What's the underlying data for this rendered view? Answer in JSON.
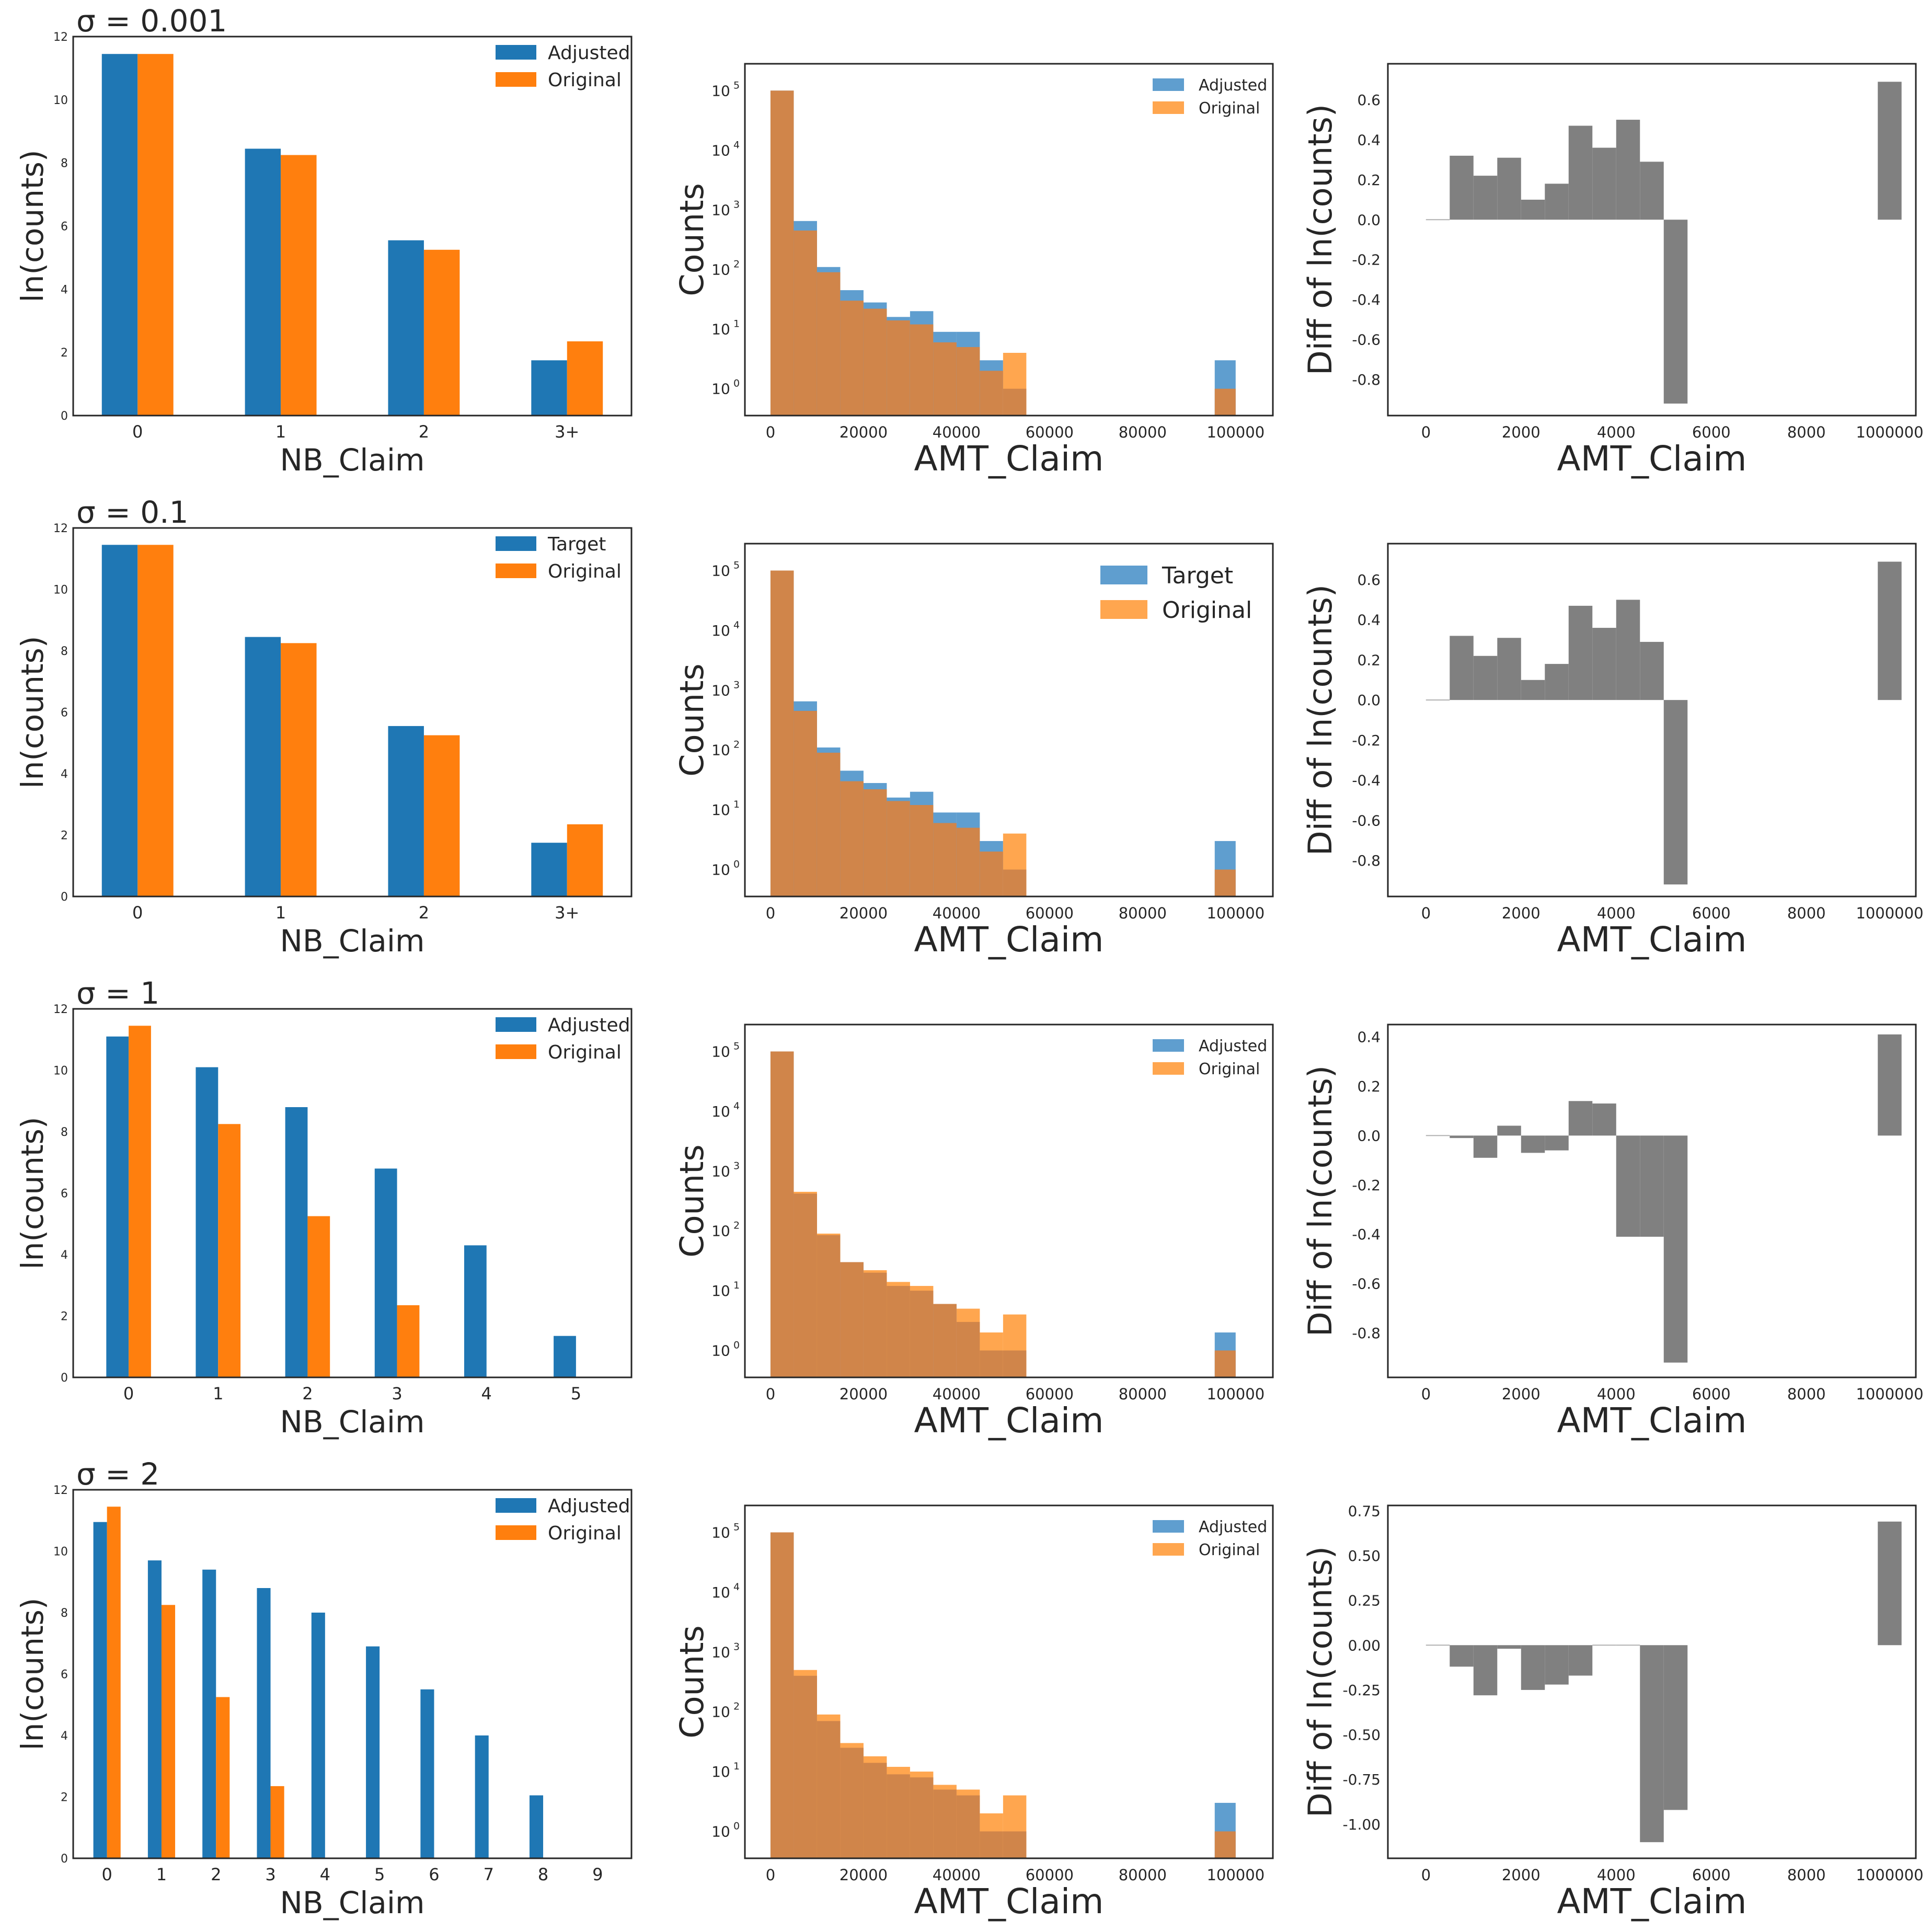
{
  "colors": {
    "adjusted": "#1f77b4",
    "original": "#ff7f0e",
    "hist_adjusted": "#5f9ecf",
    "hist_original": "#ffa64f",
    "hist_overlap": "#d0854a",
    "diff": "#808080"
  },
  "rows": [
    {
      "sigma_label": "σ = 0.001",
      "nb": {
        "type": "bar",
        "xlabel": "NB_Claim",
        "ylabel": "ln(counts)",
        "categories": [
          "0",
          "1",
          "2",
          "3+"
        ],
        "ylim": [
          0,
          12
        ],
        "yticks": [
          "0",
          "2",
          "4",
          "6",
          "8",
          "10",
          "12"
        ],
        "legend_position": "upper right",
        "series": [
          {
            "name": "Adjusted",
            "values": [
              11.45,
              8.45,
              5.55,
              1.75
            ]
          },
          {
            "name": "Original",
            "values": [
              11.45,
              8.25,
              5.25,
              2.35
            ]
          }
        ]
      },
      "amt": {
        "type": "histogram",
        "xlabel": "AMT_Claim",
        "ylabel": "Counts",
        "log_y": true,
        "xticks": [
          "0",
          "20000",
          "40000",
          "60000",
          "80000",
          "100000"
        ],
        "bins": [
          0,
          5000,
          10000,
          15000,
          20000,
          25000,
          30000,
          35000,
          40000,
          45000,
          50000,
          55000,
          60000,
          100000
        ],
        "legend_position": "upper right",
        "series": [
          {
            "name": "Adjusted",
            "values": [
              100000,
              650,
              110,
              45,
              28,
              16,
              20,
              9,
              9,
              3,
              1,
              0,
              3
            ]
          },
          {
            "name": "Original",
            "values": [
              100000,
              450,
              90,
              30,
              22,
              14,
              12,
              6,
              5,
              2,
              4,
              0,
              1
            ]
          }
        ]
      },
      "diff": {
        "type": "bar",
        "xlabel": "AMT_Claim",
        "ylabel": "Diff of ln(counts)",
        "xticks": [
          "0",
          "2000",
          "4000",
          "6000",
          "8000",
          "1000000"
        ],
        "yticks": [
          "-0.8",
          "-0.6",
          "-0.4",
          "-0.2",
          "0.0",
          "0.2",
          "0.4",
          "0.6"
        ],
        "ylim": [
          -0.98,
          0.78
        ],
        "bins": [
          0,
          500,
          1000,
          1500,
          2000,
          2500,
          3000,
          3500,
          4000,
          4500,
          5000,
          5500
        ],
        "values": [
          0.0,
          0.32,
          0.22,
          0.31,
          0.1,
          0.18,
          0.47,
          0.36,
          0.5,
          0.29,
          -0.92
        ],
        "last_value": 0.69
      }
    },
    {
      "sigma_label": "σ = 0.1",
      "nb": {
        "type": "bar",
        "xlabel": "NB_Claim",
        "ylabel": "ln(counts)",
        "categories": [
          "0",
          "1",
          "2",
          "3+"
        ],
        "ylim": [
          0,
          12
        ],
        "yticks": [
          "0",
          "2",
          "4",
          "6",
          "8",
          "10",
          "12"
        ],
        "legend_position": "upper right",
        "series": [
          {
            "name": "Target",
            "values": [
              11.45,
              8.45,
              5.55,
              1.75
            ]
          },
          {
            "name": "Original",
            "values": [
              11.45,
              8.25,
              5.25,
              2.35
            ]
          }
        ]
      },
      "amt": {
        "type": "histogram",
        "xlabel": "AMT_Claim",
        "ylabel": "Counts",
        "log_y": true,
        "xticks": [
          "0",
          "20000",
          "40000",
          "60000",
          "80000",
          "100000"
        ],
        "bins": [
          0,
          5000,
          10000,
          15000,
          20000,
          25000,
          30000,
          35000,
          40000,
          45000,
          50000,
          55000,
          60000,
          100000
        ],
        "legend_position": "upper right",
        "legend_large": true,
        "series": [
          {
            "name": "Target",
            "values": [
              100000,
              650,
              110,
              45,
              28,
              16,
              20,
              9,
              9,
              3,
              1,
              0,
              3
            ]
          },
          {
            "name": "Original",
            "values": [
              100000,
              450,
              90,
              30,
              22,
              14,
              12,
              6,
              5,
              2,
              4,
              0,
              1
            ]
          }
        ]
      },
      "diff": {
        "type": "bar",
        "xlabel": "AMT_Claim",
        "ylabel": "Diff of ln(counts)",
        "xticks": [
          "0",
          "2000",
          "4000",
          "6000",
          "8000",
          "1000000"
        ],
        "yticks": [
          "-0.8",
          "-0.6",
          "-0.4",
          "-0.2",
          "0.0",
          "0.2",
          "0.4",
          "0.6"
        ],
        "ylim": [
          -0.98,
          0.78
        ],
        "bins": [
          0,
          500,
          1000,
          1500,
          2000,
          2500,
          3000,
          3500,
          4000,
          4500,
          5000,
          5500
        ],
        "values": [
          0.0,
          0.32,
          0.22,
          0.31,
          0.1,
          0.18,
          0.47,
          0.36,
          0.5,
          0.29,
          -0.92
        ],
        "last_value": 0.69
      }
    },
    {
      "sigma_label": "σ = 1",
      "nb": {
        "type": "bar",
        "xlabel": "NB_Claim",
        "ylabel": "ln(counts)",
        "categories": [
          "0",
          "1",
          "2",
          "3",
          "4",
          "5"
        ],
        "ylim": [
          0,
          12
        ],
        "yticks": [
          "0",
          "2",
          "4",
          "6",
          "8",
          "10",
          "12"
        ],
        "legend_position": "upper right",
        "series": [
          {
            "name": "Adjusted",
            "values": [
              11.1,
              10.1,
              8.8,
              6.8,
              4.3,
              1.35
            ]
          },
          {
            "name": "Original",
            "values": [
              11.45,
              8.25,
              5.25,
              2.35,
              0,
              0
            ]
          }
        ]
      },
      "amt": {
        "type": "histogram",
        "xlabel": "AMT_Claim",
        "ylabel": "Counts",
        "log_y": true,
        "xticks": [
          "0",
          "20000",
          "40000",
          "60000",
          "80000",
          "100000"
        ],
        "bins": [
          0,
          5000,
          10000,
          15000,
          20000,
          25000,
          30000,
          35000,
          40000,
          45000,
          50000,
          55000,
          60000,
          100000
        ],
        "legend_position": "upper right",
        "series": [
          {
            "name": "Adjusted",
            "values": [
              100000,
              420,
              85,
              30,
              20,
              12,
              10,
              6,
              3,
              1,
              1,
              0,
              2
            ]
          },
          {
            "name": "Original",
            "values": [
              100000,
              450,
              90,
              30,
              22,
              14,
              12,
              6,
              5,
              2,
              4,
              0,
              1
            ]
          }
        ]
      },
      "diff": {
        "type": "bar",
        "xlabel": "AMT_Claim",
        "ylabel": "Diff of ln(counts)",
        "xticks": [
          "0",
          "2000",
          "4000",
          "6000",
          "8000",
          "1000000"
        ],
        "yticks": [
          "-0.8",
          "-0.6",
          "-0.4",
          "-0.2",
          "0.0",
          "0.2",
          "0.4"
        ],
        "ylim": [
          -0.98,
          0.45
        ],
        "bins": [
          0,
          500,
          1000,
          1500,
          2000,
          2500,
          3000,
          3500,
          4000,
          4500,
          5000,
          5500
        ],
        "values": [
          0.0,
          -0.01,
          -0.09,
          0.04,
          -0.07,
          -0.06,
          0.14,
          0.13,
          -0.41,
          -0.41,
          -0.92
        ],
        "last_value": 0.41
      }
    },
    {
      "sigma_label": "σ = 2",
      "nb": {
        "type": "bar",
        "xlabel": "NB_Claim",
        "ylabel": "ln(counts)",
        "categories": [
          "0",
          "1",
          "2",
          "3",
          "4",
          "5",
          "6",
          "7",
          "8",
          "9"
        ],
        "ylim": [
          0,
          12
        ],
        "yticks": [
          "0",
          "2",
          "4",
          "6",
          "8",
          "10",
          "12"
        ],
        "legend_position": "upper right",
        "series": [
          {
            "name": "Adjusted",
            "values": [
              10.95,
              9.7,
              9.4,
              8.8,
              8.0,
              6.9,
              5.5,
              4.0,
              2.05,
              0
            ]
          },
          {
            "name": "Original",
            "values": [
              11.45,
              8.25,
              5.25,
              2.35,
              0,
              0,
              0,
              0,
              0,
              0
            ]
          }
        ]
      },
      "amt": {
        "type": "histogram",
        "xlabel": "AMT_Claim",
        "ylabel": "Counts",
        "log_y": true,
        "xticks": [
          "0",
          "20000",
          "40000",
          "60000",
          "80000",
          "100000"
        ],
        "bins": [
          0,
          5000,
          10000,
          15000,
          20000,
          25000,
          30000,
          35000,
          40000,
          45000,
          50000,
          55000,
          60000,
          100000
        ],
        "legend_position": "upper right",
        "series": [
          {
            "name": "Adjusted",
            "values": [
              100000,
              400,
              70,
              25,
              14,
              9,
              8,
              5,
              4,
              1,
              1,
              0,
              3
            ]
          },
          {
            "name": "Original",
            "values": [
              100000,
              500,
              90,
              30,
              18,
              12,
              10,
              6,
              5,
              2,
              4,
              0,
              1
            ]
          }
        ]
      },
      "diff": {
        "type": "bar",
        "xlabel": "AMT_Claim",
        "ylabel": "Diff of ln(counts)",
        "xticks": [
          "0",
          "2000",
          "4000",
          "6000",
          "8000",
          "1000000"
        ],
        "yticks": [
          "-1.00",
          "-0.75",
          "-0.50",
          "-0.25",
          "0.00",
          "0.25",
          "0.50",
          "0.75"
        ],
        "ylim": [
          -1.19,
          0.78
        ],
        "bins": [
          0,
          500,
          1000,
          1500,
          2000,
          2500,
          3000,
          3500,
          4000,
          4500,
          5000,
          5500
        ],
        "values": [
          0.0,
          -0.12,
          -0.28,
          -0.02,
          -0.25,
          -0.22,
          -0.17,
          0.0,
          0.0,
          -1.1,
          -0.92
        ],
        "last_value": 0.69
      }
    }
  ]
}
